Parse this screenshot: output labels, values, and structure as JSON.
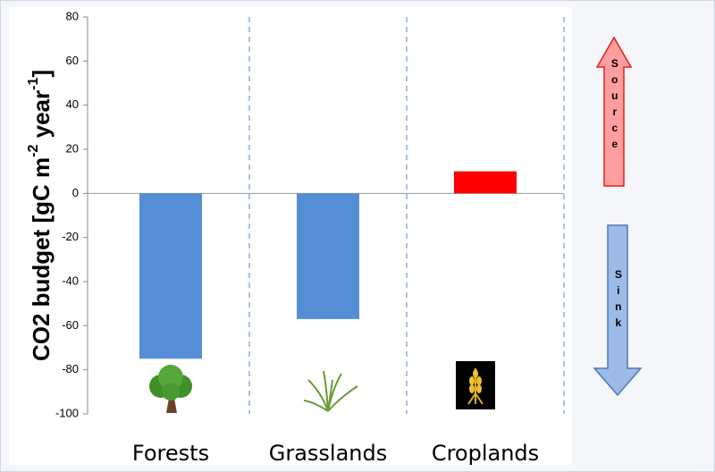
{
  "chart_data": {
    "type": "bar",
    "y_label_parts": [
      "CO2 budget [gC m",
      "-2",
      " year",
      "-1",
      "]"
    ],
    "categories": [
      "Forests",
      "Grasslands",
      "Croplands"
    ],
    "values": [
      -75,
      -57,
      10
    ],
    "colors": [
      "#558ed5",
      "#558ed5",
      "#ff0000"
    ],
    "ylim": [
      -100,
      80
    ],
    "yticks": [
      -100,
      -80,
      -60,
      -40,
      -20,
      0,
      20,
      40,
      60,
      80
    ],
    "annotations": [
      "Source",
      "Sink"
    ]
  }
}
